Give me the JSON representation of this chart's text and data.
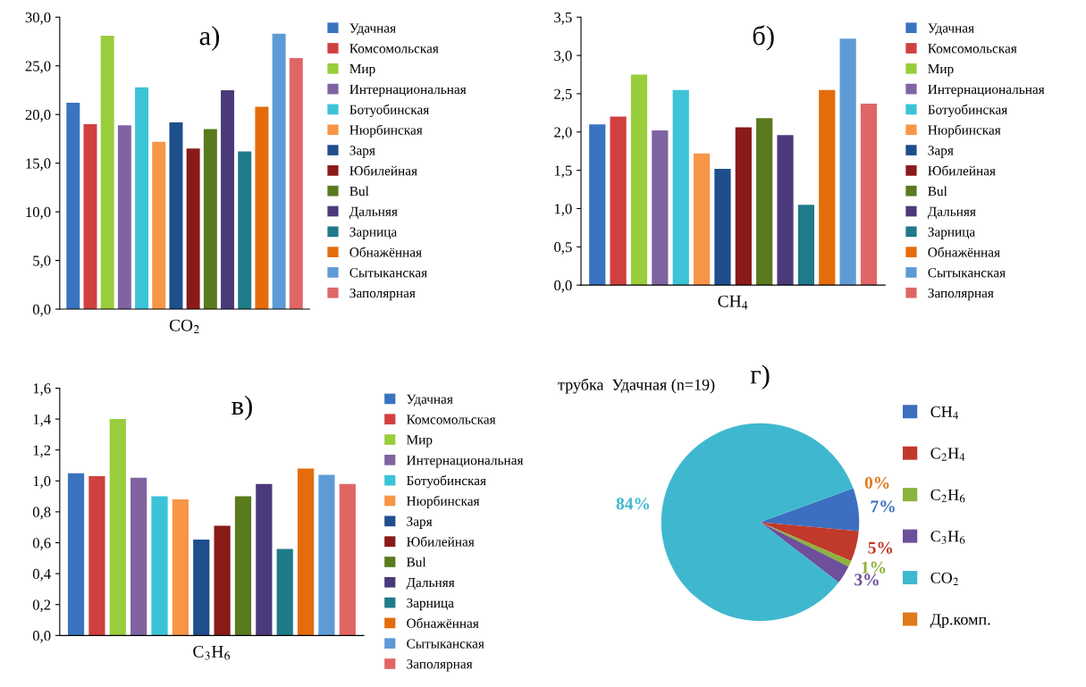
{
  "chart_data": [
    {
      "type": "bar",
      "title": "а)",
      "xlabel": "CO$_{2}$",
      "categories": [
        null
      ],
      "legend": "right",
      "grid": false,
      "tick_labels": "y",
      "ylim": [
        0,
        30
      ],
      "yticks": [
        {
          "value": 0,
          "label": "0,0"
        },
        {
          "value": 5,
          "label": "5,0"
        },
        {
          "value": 10,
          "label": "10,0"
        },
        {
          "value": 15,
          "label": "15,0"
        },
        {
          "value": 20,
          "label": "20,0"
        },
        {
          "value": 25,
          "label": "25,0"
        },
        {
          "value": 30,
          "label": "30,0"
        }
      ],
      "series": [
        {
          "name": "Удачная",
          "color": "#3a73c0",
          "values": [
            21.2
          ]
        },
        {
          "name": "Комсомольская",
          "color": "#d0403f",
          "values": [
            19.0
          ]
        },
        {
          "name": "Мир",
          "color": "#9acd3c",
          "values": [
            28.1
          ]
        },
        {
          "name": "Интернациональная",
          "color": "#8064a2",
          "values": [
            18.9
          ]
        },
        {
          "name": "Ботуобинская",
          "color": "#3cc3d8",
          "values": [
            22.8
          ]
        },
        {
          "name": "Нюрбинская",
          "color": "#f79646",
          "values": [
            17.2
          ]
        },
        {
          "name": "Заря",
          "color": "#1f4e8c",
          "values": [
            19.2
          ]
        },
        {
          "name": "Юбилейная",
          "color": "#8b1a1a",
          "values": [
            16.5
          ]
        },
        {
          "name": "Bul",
          "color": "#5a7a1e",
          "values": [
            18.5
          ]
        },
        {
          "name": "Дальняя",
          "color": "#4b3a7a",
          "values": [
            22.5
          ]
        },
        {
          "name": "Зарница",
          "color": "#1f7a8a",
          "values": [
            16.2
          ]
        },
        {
          "name": "Обнажённая",
          "color": "#e46c0a",
          "values": [
            20.8
          ]
        },
        {
          "name": "Сытыканская",
          "color": "#5e9bd6",
          "values": [
            28.3
          ]
        },
        {
          "name": "Заполярная",
          "color": "#e06666",
          "values": [
            25.8
          ]
        }
      ]
    },
    {
      "type": "bar",
      "title": "б)",
      "xlabel": "CH$_{4}$",
      "categories": [
        null
      ],
      "legend": "right",
      "grid": false,
      "tick_labels": "y",
      "ylim": [
        0,
        3.5
      ],
      "yticks": [
        {
          "value": 0,
          "label": "0,0"
        },
        {
          "value": 0.5,
          "label": "0,5"
        },
        {
          "value": 1,
          "label": "1,0"
        },
        {
          "value": 1.5,
          "label": "1,5"
        },
        {
          "value": 2,
          "label": "2,0"
        },
        {
          "value": 2.5,
          "label": "2,5"
        },
        {
          "value": 3,
          "label": "3,0"
        },
        {
          "value": 3.5,
          "label": "3,5"
        }
      ],
      "series": [
        {
          "name": "Удачная",
          "color": "#3a73c0",
          "values": [
            2.1
          ]
        },
        {
          "name": "Комсомольская",
          "color": "#d0403f",
          "values": [
            2.2
          ]
        },
        {
          "name": "Мир",
          "color": "#9acd3c",
          "values": [
            2.75
          ]
        },
        {
          "name": "Интернациональная",
          "color": "#8064a2",
          "values": [
            2.02
          ]
        },
        {
          "name": "Ботуобинская",
          "color": "#3cc3d8",
          "values": [
            2.55
          ]
        },
        {
          "name": "Нюрбинская",
          "color": "#f79646",
          "values": [
            1.72
          ]
        },
        {
          "name": "Заря",
          "color": "#1f4e8c",
          "values": [
            1.52
          ]
        },
        {
          "name": "Юбилейная",
          "color": "#8b1a1a",
          "values": [
            2.06
          ]
        },
        {
          "name": "Bul",
          "color": "#5a7a1e",
          "values": [
            2.18
          ]
        },
        {
          "name": "Дальняя",
          "color": "#4b3a7a",
          "values": [
            1.96
          ]
        },
        {
          "name": "Зарница",
          "color": "#1f7a8a",
          "values": [
            1.05
          ]
        },
        {
          "name": "Обнажённая",
          "color": "#e46c0a",
          "values": [
            2.55
          ]
        },
        {
          "name": "Сытыканская",
          "color": "#5e9bd6",
          "values": [
            3.22
          ]
        },
        {
          "name": "Заполярная",
          "color": "#e06666",
          "values": [
            2.37
          ]
        }
      ]
    },
    {
      "type": "bar",
      "title": "в)",
      "xlabel": "C$_{3}$H$_{6}$",
      "categories": [
        null
      ],
      "legend": "right",
      "grid": false,
      "tick_labels": "y",
      "ylim": [
        0,
        1.6
      ],
      "yticks": [
        {
          "value": 0,
          "label": "0,0"
        },
        {
          "value": 0.2,
          "label": "0,2"
        },
        {
          "value": 0.4,
          "label": "0,4"
        },
        {
          "value": 0.6,
          "label": "0,6"
        },
        {
          "value": 0.8,
          "label": "0,8"
        },
        {
          "value": 1,
          "label": "1,0"
        },
        {
          "value": 1.2,
          "label": "1,2"
        },
        {
          "value": 1.4,
          "label": "1,4"
        },
        {
          "value": 1.6,
          "label": "1,6"
        }
      ],
      "series": [
        {
          "name": "Удачная",
          "color": "#3a73c0",
          "values": [
            1.05
          ]
        },
        {
          "name": "Комсомольская",
          "color": "#d0403f",
          "values": [
            1.03
          ]
        },
        {
          "name": "Мир",
          "color": "#9acd3c",
          "values": [
            1.4
          ]
        },
        {
          "name": "Интернациональная",
          "color": "#8064a2",
          "values": [
            1.02
          ]
        },
        {
          "name": "Ботуобинская",
          "color": "#3cc3d8",
          "values": [
            0.9
          ]
        },
        {
          "name": "Нюрбинская",
          "color": "#f79646",
          "values": [
            0.88
          ]
        },
        {
          "name": "Заря",
          "color": "#1f4e8c",
          "values": [
            0.62
          ]
        },
        {
          "name": "Юбилейная",
          "color": "#8b1a1a",
          "values": [
            0.71
          ]
        },
        {
          "name": "Bul",
          "color": "#5a7a1e",
          "values": [
            0.9
          ]
        },
        {
          "name": "Дальняя",
          "color": "#4b3a7a",
          "values": [
            0.98
          ]
        },
        {
          "name": "Зарница",
          "color": "#1f7a8a",
          "values": [
            0.56
          ]
        },
        {
          "name": "Обнажённая",
          "color": "#e46c0a",
          "values": [
            1.08
          ]
        },
        {
          "name": "Сытыканская",
          "color": "#5e9bd6",
          "values": [
            1.04
          ]
        },
        {
          "name": "Заполярная",
          "color": "#e06666",
          "values": [
            0.98
          ]
        }
      ]
    },
    {
      "type": "pie",
      "title": "г)",
      "subtitle": "трубка  Удачная (n=19)",
      "legend": "right",
      "categories": [
        "CH$_{4}$",
        "C$_{2}$H$_{4}$",
        "C$_{2}$H$_{6}$",
        "C$_{3}$H$_{6}$",
        "CO$_{2}$",
        "Др.комп."
      ],
      "values": [
        7,
        5,
        1,
        3,
        84,
        0
      ],
      "colors": [
        "#3c6fc0",
        "#c0392b",
        "#8cb33c",
        "#6d4f9c",
        "#3fb8cf",
        "#e07a1c"
      ],
      "value_labels": [
        "7%",
        "5%",
        "1%",
        "3%",
        "84%",
        "0%"
      ]
    }
  ]
}
